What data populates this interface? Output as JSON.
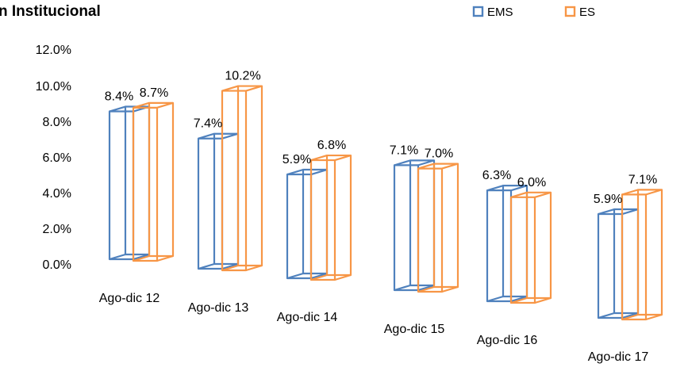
{
  "chart_data": {
    "type": "bar",
    "title": "n Institucional",
    "categories": [
      "Ago-dic 12",
      "Ago-dic 13",
      "Ago-dic 14",
      "Ago-dic 15",
      "Ago-dic 16",
      "Ago-dic 17"
    ],
    "series": [
      {
        "name": "EMS",
        "values": [
          8.4,
          7.4,
          5.9,
          7.1,
          6.3,
          5.9
        ],
        "labels": [
          "8.4%",
          "7.4%",
          "5.9%",
          "7.1%",
          "6.3%",
          "5.9%"
        ],
        "color": "#4f81bd"
      },
      {
        "name": "ES",
        "values": [
          8.7,
          10.2,
          6.8,
          7.0,
          6.0,
          7.1
        ],
        "labels": [
          "8.7%",
          "10.2%",
          "6.8%",
          "7.0%",
          "6.0%",
          "7.1%"
        ],
        "color": "#f79646"
      }
    ],
    "y_ticks": [
      "12.0%",
      "10.0%",
      "8.0%",
      "6.0%",
      "4.0%",
      "2.0%",
      "0.0%"
    ],
    "ylim": [
      0,
      12
    ],
    "grid": false,
    "legend_position": "top-right",
    "style": "3d-wireframe-columns"
  }
}
